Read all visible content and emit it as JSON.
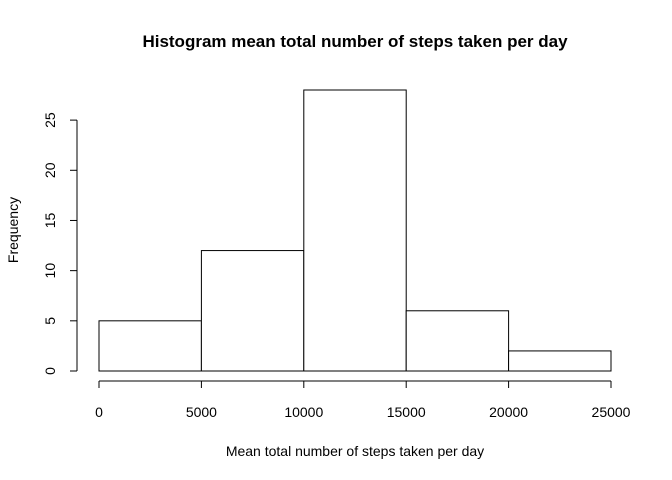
{
  "chart_data": {
    "type": "bar",
    "subtype": "histogram",
    "title": "Histogram mean total number of steps taken per day",
    "xlabel": "Mean total number of steps taken per day",
    "ylabel": "Frequency",
    "bins": [
      {
        "from": 0,
        "to": 5000,
        "count": 5
      },
      {
        "from": 5000,
        "to": 10000,
        "count": 12
      },
      {
        "from": 10000,
        "to": 15000,
        "count": 28
      },
      {
        "from": 15000,
        "to": 20000,
        "count": 6
      },
      {
        "from": 20000,
        "to": 25000,
        "count": 2
      }
    ],
    "xlim": [
      0,
      25000
    ],
    "ylim": [
      0,
      28
    ],
    "xticks": [
      0,
      5000,
      10000,
      15000,
      20000,
      25000
    ],
    "yticks": [
      0,
      5,
      10,
      15,
      20,
      25
    ],
    "grid": false,
    "legend": "none",
    "bar_fill": "#ffffff",
    "bar_stroke": "#000000"
  }
}
